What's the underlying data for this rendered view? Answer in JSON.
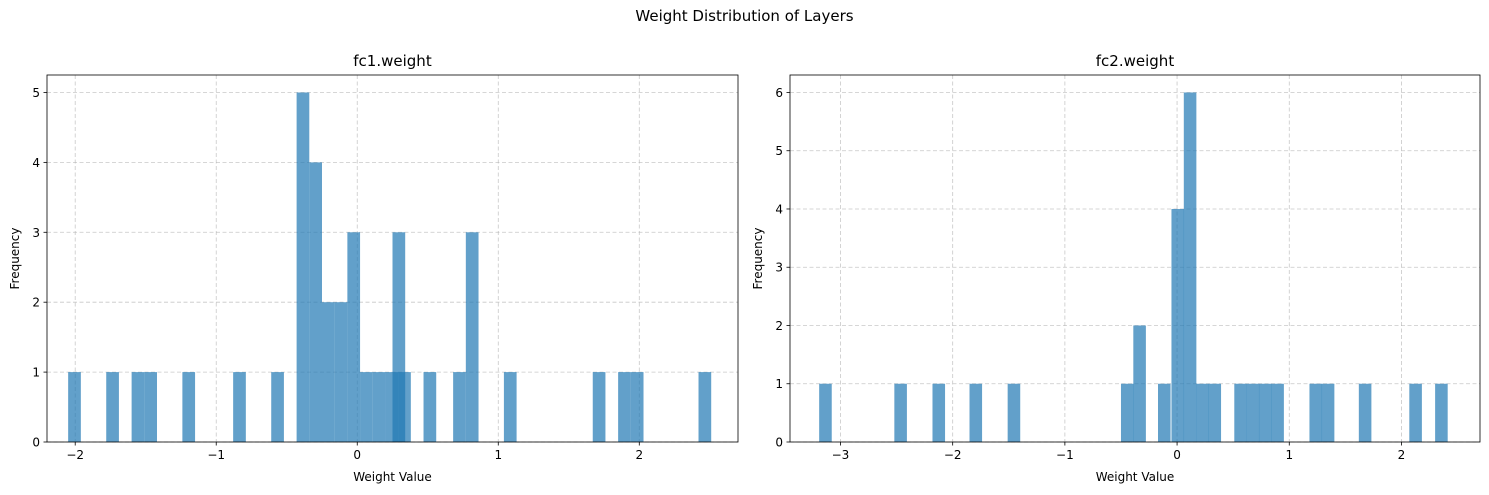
{
  "figure": {
    "suptitle": "Weight Distribution of Layers"
  },
  "chart_data": [
    {
      "type": "bar",
      "title": "fc1.weight",
      "xlabel": "Weight Value",
      "ylabel": "Frequency",
      "xlim": [
        -2.2,
        2.7
      ],
      "ylim": [
        0,
        5.25
      ],
      "xticks": [
        -2,
        -1,
        0,
        1,
        2
      ],
      "xtick_labels": [
        "−2",
        "−1",
        "0",
        "1",
        "2"
      ],
      "yticks": [
        0,
        1,
        2,
        3,
        4,
        5
      ],
      "ytick_labels": [
        "0",
        "1",
        "2",
        "3",
        "4",
        "5"
      ],
      "grid": true,
      "color": "#1f77b4",
      "alpha": 0.7,
      "bin_width": 0.09,
      "bins": [
        {
          "x0": -2.05,
          "count": 1
        },
        {
          "x0": -1.78,
          "count": 1
        },
        {
          "x0": -1.6,
          "count": 1
        },
        {
          "x0": -1.51,
          "count": 1
        },
        {
          "x0": -1.24,
          "count": 1
        },
        {
          "x0": -0.88,
          "count": 1
        },
        {
          "x0": -0.61,
          "count": 1
        },
        {
          "x0": -0.43,
          "count": 5
        },
        {
          "x0": -0.34,
          "count": 4
        },
        {
          "x0": -0.25,
          "count": 2
        },
        {
          "x0": -0.16,
          "count": 2
        },
        {
          "x0": -0.07,
          "count": 3
        },
        {
          "x0": 0.02,
          "count": 1
        },
        {
          "x0": 0.11,
          "count": 1
        },
        {
          "x0": 0.2,
          "count": 1
        },
        {
          "x0": 0.25,
          "count": 3
        },
        {
          "x0": 0.29,
          "count": 1
        },
        {
          "x0": 0.47,
          "count": 1
        },
        {
          "x0": 0.68,
          "count": 1
        },
        {
          "x0": 0.77,
          "count": 3
        },
        {
          "x0": 1.04,
          "count": 1
        },
        {
          "x0": 1.67,
          "count": 1
        },
        {
          "x0": 1.85,
          "count": 1
        },
        {
          "x0": 1.94,
          "count": 1
        },
        {
          "x0": 2.42,
          "count": 1
        }
      ]
    },
    {
      "type": "bar",
      "title": "fc2.weight",
      "xlabel": "Weight Value",
      "ylabel": "Frequency",
      "xlim": [
        -3.45,
        2.7
      ],
      "ylim": [
        0,
        6.3
      ],
      "xticks": [
        -3,
        -2,
        -1,
        0,
        1,
        2
      ],
      "xtick_labels": [
        "−3",
        "−2",
        "−1",
        "0",
        "1",
        "2"
      ],
      "yticks": [
        0,
        1,
        2,
        3,
        4,
        5,
        6
      ],
      "ytick_labels": [
        "0",
        "1",
        "2",
        "3",
        "4",
        "5",
        "6"
      ],
      "grid": true,
      "color": "#1f77b4",
      "alpha": 0.7,
      "bin_width": 0.112,
      "bins": [
        {
          "x0": -3.19,
          "count": 1
        },
        {
          "x0": -2.52,
          "count": 1
        },
        {
          "x0": -2.18,
          "count": 1
        },
        {
          "x0": -1.85,
          "count": 1
        },
        {
          "x0": -1.51,
          "count": 1
        },
        {
          "x0": -0.5,
          "count": 1
        },
        {
          "x0": -0.39,
          "count": 2
        },
        {
          "x0": -0.17,
          "count": 1
        },
        {
          "x0": -0.05,
          "count": 4
        },
        {
          "x0": 0.06,
          "count": 6
        },
        {
          "x0": 0.17,
          "count": 1
        },
        {
          "x0": 0.28,
          "count": 1
        },
        {
          "x0": 0.51,
          "count": 1
        },
        {
          "x0": 0.62,
          "count": 1
        },
        {
          "x0": 0.73,
          "count": 1
        },
        {
          "x0": 0.84,
          "count": 1
        },
        {
          "x0": 1.18,
          "count": 1
        },
        {
          "x0": 1.29,
          "count": 1
        },
        {
          "x0": 1.62,
          "count": 1
        },
        {
          "x0": 2.07,
          "count": 1
        },
        {
          "x0": 2.3,
          "count": 1
        }
      ]
    }
  ]
}
